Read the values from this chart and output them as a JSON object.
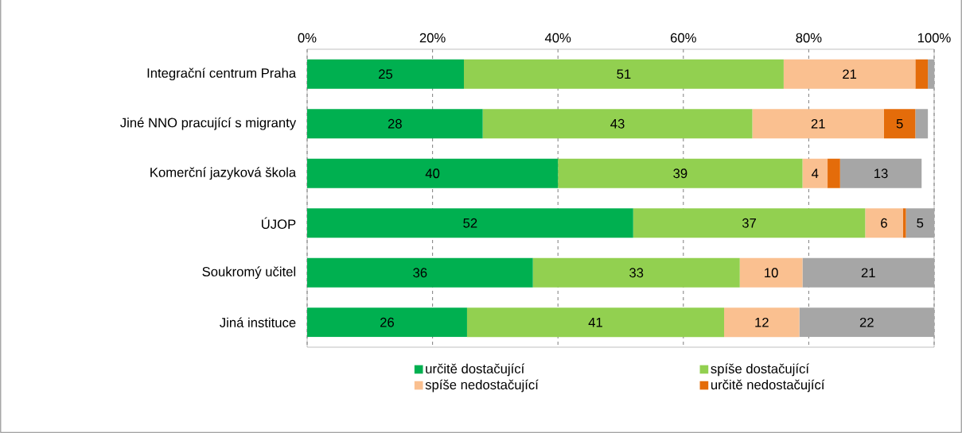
{
  "chart_data": {
    "type": "bar",
    "orientation": "horizontal",
    "stacked": true,
    "categories": [
      "Integrační centrum Praha",
      "Jiné NNO pracující s migranty",
      "Komerční jazyková škola",
      "ÚJOP",
      "Soukromý učitel",
      "Jiná instituce"
    ],
    "series": [
      {
        "name": "určitě dostačující",
        "color": "#00b050",
        "values": [
          25,
          28,
          40,
          52,
          36,
          25.5
        ],
        "value_labels": [
          "25",
          "28",
          "40",
          "52",
          "36",
          "26"
        ]
      },
      {
        "name": "spíše dostačující",
        "color": "#92d050",
        "values": [
          51,
          43,
          39,
          37,
          33,
          41
        ],
        "value_labels": [
          "51",
          "43",
          "39",
          "37",
          "33",
          "41"
        ]
      },
      {
        "name": "spíše nedostačující",
        "color": "#fac090",
        "values": [
          21,
          21,
          4,
          6,
          10,
          12
        ],
        "value_labels": [
          "21",
          "21",
          "4",
          "6",
          "10",
          "12"
        ]
      },
      {
        "name": "určitě nedostačující",
        "color": "#e46c0a",
        "values": [
          2,
          5,
          2,
          0.5,
          0,
          0
        ],
        "value_labels": [
          null,
          "5",
          null,
          null,
          null,
          null
        ]
      },
      {
        "color": "#a6a6a6",
        "values": [
          1,
          2,
          13,
          4.5,
          21,
          21.5
        ],
        "value_labels": [
          null,
          null,
          "13",
          "5",
          "21",
          "22"
        ]
      }
    ],
    "xlim": [
      0,
      100
    ],
    "xticks": [
      {
        "value": 0,
        "label": "0%"
      },
      {
        "value": 20,
        "label": "20%"
      },
      {
        "value": 40,
        "label": "40%"
      },
      {
        "value": 60,
        "label": "60%"
      },
      {
        "value": 80,
        "label": "80%"
      },
      {
        "value": 100,
        "label": "100%"
      }
    ],
    "grid": "x",
    "legend": "bottom"
  }
}
